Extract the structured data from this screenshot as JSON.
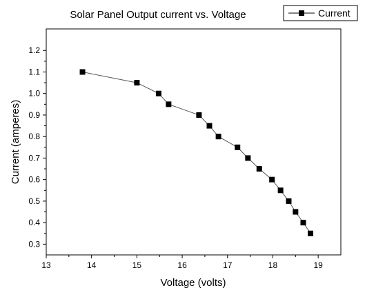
{
  "chart_data": {
    "type": "line",
    "title": "Solar Panel Output current vs. Voltage",
    "xlabel": "Voltage (volts)",
    "ylabel": "Current (amperes)",
    "xlim": [
      13,
      19.5
    ],
    "ylim": [
      0.25,
      1.3
    ],
    "x_ticks": [
      13,
      14,
      15,
      16,
      17,
      18,
      19
    ],
    "y_ticks": [
      0.3,
      0.4,
      0.5,
      0.6,
      0.7,
      0.8,
      0.9,
      1.0,
      1.1,
      1.2
    ],
    "x_tick_labels": [
      "13",
      "14",
      "15",
      "16",
      "17",
      "18",
      "19"
    ],
    "y_tick_labels": [
      "0.3",
      "0.4",
      "0.5",
      "0.6",
      "0.7",
      "0.8",
      "0.9",
      "1.0",
      "1.1",
      "1.2"
    ],
    "grid": false,
    "legend_position": "top-right",
    "series": [
      {
        "name": "Current",
        "color": "#000000",
        "line_color": "#555555",
        "marker": "square",
        "x": [
          13.8,
          15.0,
          15.48,
          15.7,
          16.37,
          16.6,
          16.8,
          17.22,
          17.45,
          17.7,
          17.98,
          18.17,
          18.35,
          18.5,
          18.67,
          18.83
        ],
        "y": [
          1.1,
          1.05,
          1.0,
          0.95,
          0.9,
          0.85,
          0.8,
          0.75,
          0.7,
          0.65,
          0.6,
          0.55,
          0.5,
          0.45,
          0.4,
          0.35
        ]
      }
    ]
  }
}
